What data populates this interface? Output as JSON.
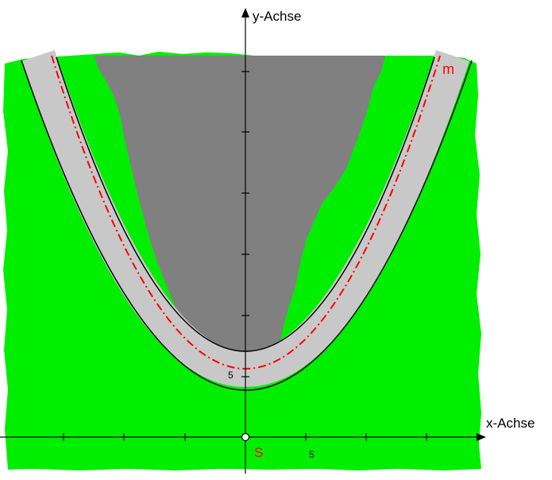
{
  "figure": {
    "y_axis_label": "y-Achse",
    "x_axis_label": "x-Achse",
    "curve_label": "m",
    "vertex_label": "S",
    "x_tick_label": "5",
    "y_tick_label": "5",
    "colors": {
      "meadow": "#00ee00",
      "lake": "#808080",
      "road": "#c8c8c8",
      "road_edge": "#000000",
      "center_line": "#ff0000",
      "axis": "#000000",
      "label_red": "#ff0000"
    }
  }
}
